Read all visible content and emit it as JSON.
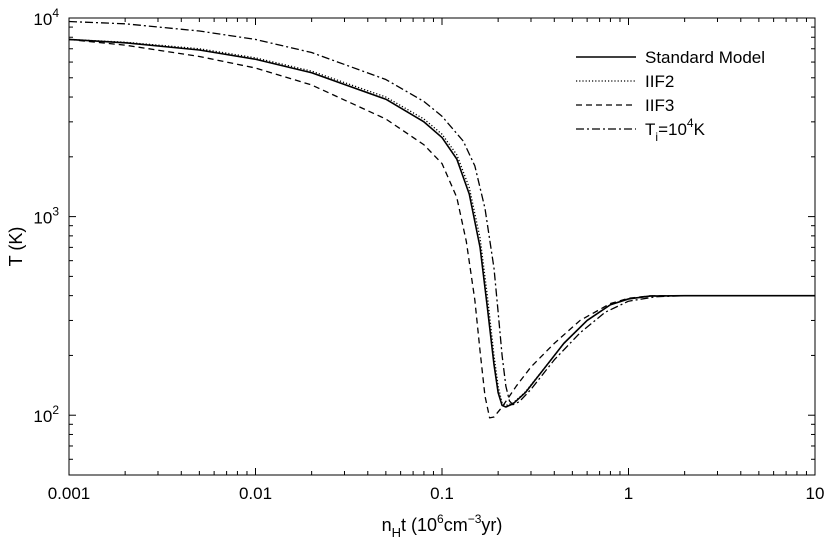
{
  "chart_data": {
    "type": "line",
    "x_scale": "log",
    "y_scale": "log",
    "xlim": [
      0.001,
      10
    ],
    "ylim": [
      50,
      10000
    ],
    "x_ticks": [
      {
        "value": 0.001,
        "label": "0.001"
      },
      {
        "value": 0.01,
        "label": "0.01"
      },
      {
        "value": 0.1,
        "label": "0.1"
      },
      {
        "value": 1,
        "label": "1"
      },
      {
        "value": 10,
        "label": "10"
      }
    ],
    "y_ticks": [
      {
        "value": 100,
        "base": "10",
        "exp": "2"
      },
      {
        "value": 1000,
        "base": "10",
        "exp": "3"
      },
      {
        "value": 10000,
        "base": "10",
        "exp": "4"
      }
    ],
    "xlabel": {
      "pre": "n",
      "sub": "H",
      "mid": "t (10",
      "sup1": "6",
      "mid2": "cm",
      "sup2": "−3",
      "post": "yr)"
    },
    "ylabel": "T (K)",
    "legend_position": "top-right",
    "grid": false,
    "series": [
      {
        "name": "Standard Model",
        "dash": "solid",
        "points": [
          [
            0.001,
            7800
          ],
          [
            0.002,
            7500
          ],
          [
            0.005,
            6900
          ],
          [
            0.01,
            6200
          ],
          [
            0.02,
            5300
          ],
          [
            0.05,
            3900
          ],
          [
            0.08,
            3000
          ],
          [
            0.1,
            2500
          ],
          [
            0.12,
            1950
          ],
          [
            0.14,
            1300
          ],
          [
            0.16,
            700
          ],
          [
            0.175,
            350
          ],
          [
            0.19,
            180
          ],
          [
            0.2,
            130
          ],
          [
            0.21,
            112
          ],
          [
            0.22,
            110
          ],
          [
            0.24,
            114
          ],
          [
            0.28,
            130
          ],
          [
            0.35,
            170
          ],
          [
            0.45,
            230
          ],
          [
            0.6,
            300
          ],
          [
            0.8,
            360
          ],
          [
            1.0,
            385
          ],
          [
            1.3,
            398
          ],
          [
            2,
            400
          ],
          [
            5,
            400
          ],
          [
            10,
            400
          ]
        ]
      },
      {
        "name": "IIF2",
        "dash": "dotted",
        "points": [
          [
            0.001,
            7800
          ],
          [
            0.002,
            7550
          ],
          [
            0.005,
            7000
          ],
          [
            0.01,
            6300
          ],
          [
            0.02,
            5400
          ],
          [
            0.05,
            4000
          ],
          [
            0.08,
            3100
          ],
          [
            0.1,
            2600
          ],
          [
            0.12,
            2050
          ],
          [
            0.14,
            1400
          ],
          [
            0.16,
            780
          ],
          [
            0.175,
            400
          ],
          [
            0.19,
            200
          ],
          [
            0.2,
            140
          ],
          [
            0.21,
            115
          ],
          [
            0.22,
            112
          ],
          [
            0.24,
            115
          ],
          [
            0.28,
            131
          ],
          [
            0.35,
            170
          ],
          [
            0.45,
            230
          ],
          [
            0.6,
            300
          ],
          [
            0.8,
            360
          ],
          [
            1.0,
            385
          ],
          [
            1.3,
            398
          ],
          [
            2,
            400
          ],
          [
            5,
            400
          ],
          [
            10,
            400
          ]
        ]
      },
      {
        "name": "IIF3",
        "dash": "dashed",
        "points": [
          [
            0.001,
            7800
          ],
          [
            0.002,
            7300
          ],
          [
            0.005,
            6400
          ],
          [
            0.01,
            5600
          ],
          [
            0.02,
            4600
          ],
          [
            0.05,
            3100
          ],
          [
            0.08,
            2300
          ],
          [
            0.1,
            1850
          ],
          [
            0.12,
            1250
          ],
          [
            0.135,
            750
          ],
          [
            0.15,
            380
          ],
          [
            0.16,
            210
          ],
          [
            0.17,
            125
          ],
          [
            0.18,
            97
          ],
          [
            0.19,
            98
          ],
          [
            0.21,
            110
          ],
          [
            0.25,
            140
          ],
          [
            0.3,
            175
          ],
          [
            0.4,
            230
          ],
          [
            0.55,
            300
          ],
          [
            0.8,
            365
          ],
          [
            1.0,
            388
          ],
          [
            1.3,
            399
          ],
          [
            2,
            400
          ],
          [
            5,
            400
          ],
          [
            10,
            400
          ]
        ]
      },
      {
        "name": "T_i=10^4K",
        "dash": "dashdot",
        "label_parts": {
          "pre": "T",
          "sub": "i",
          "mid": "=10",
          "sup": "4",
          "post": "K"
        },
        "points": [
          [
            0.001,
            9600
          ],
          [
            0.002,
            9350
          ],
          [
            0.005,
            8600
          ],
          [
            0.01,
            7800
          ],
          [
            0.02,
            6700
          ],
          [
            0.05,
            4900
          ],
          [
            0.08,
            3800
          ],
          [
            0.1,
            3200
          ],
          [
            0.13,
            2400
          ],
          [
            0.15,
            1800
          ],
          [
            0.17,
            1100
          ],
          [
            0.19,
            550
          ],
          [
            0.2,
            330
          ],
          [
            0.21,
            200
          ],
          [
            0.22,
            140
          ],
          [
            0.23,
            118
          ],
          [
            0.24,
            113
          ],
          [
            0.26,
            117
          ],
          [
            0.3,
            135
          ],
          [
            0.4,
            190
          ],
          [
            0.55,
            260
          ],
          [
            0.75,
            330
          ],
          [
            1.0,
            375
          ],
          [
            1.4,
            395
          ],
          [
            2,
            400
          ],
          [
            5,
            400
          ],
          [
            10,
            400
          ]
        ]
      }
    ]
  }
}
